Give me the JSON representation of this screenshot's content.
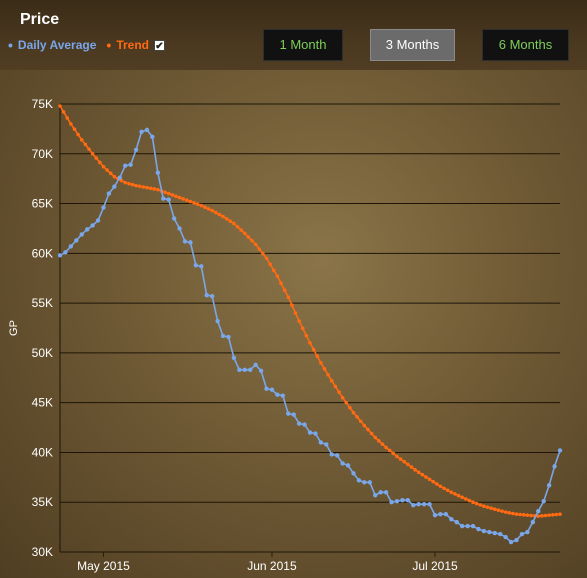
{
  "header": {
    "title": "Price",
    "legend": {
      "avg_label": "Daily Average",
      "trend_label": "Trend",
      "trend_checked": true
    },
    "buttons": [
      {
        "label": "1 Month"
      },
      {
        "label": "3 Months"
      },
      {
        "label": "6 Months"
      }
    ]
  },
  "colors": {
    "average": "#7aa6ea",
    "trend": "#ff6a12",
    "gridline": "#1e1408"
  },
  "chart_data": {
    "type": "line",
    "ylabel": "GP",
    "ylim": [
      30000,
      75000
    ],
    "y_ticks": [
      {
        "v": 30000,
        "label": "30K"
      },
      {
        "v": 35000,
        "label": "35K"
      },
      {
        "v": 40000,
        "label": "40K"
      },
      {
        "v": 45000,
        "label": "45K"
      },
      {
        "v": 50000,
        "label": "50K"
      },
      {
        "v": 55000,
        "label": "55K"
      },
      {
        "v": 60000,
        "label": "60K"
      },
      {
        "v": 65000,
        "label": "65K"
      },
      {
        "v": 70000,
        "label": "70K"
      },
      {
        "v": 75000,
        "label": "75K"
      }
    ],
    "x_start": "2015-04-23",
    "x_end": "2015-07-24",
    "x_ticks": [
      {
        "date": "2015-05-01",
        "label": "May 2015"
      },
      {
        "date": "2015-06-01",
        "label": "Jun 2015"
      },
      {
        "date": "2015-07-01",
        "label": "Jul 2015"
      }
    ],
    "series": [
      {
        "name": "Daily Average",
        "points": [
          [
            "2015-04-23",
            59800
          ],
          [
            "2015-04-24",
            60100
          ],
          [
            "2015-04-25",
            60700
          ],
          [
            "2015-04-26",
            61300
          ],
          [
            "2015-04-27",
            61900
          ],
          [
            "2015-04-28",
            62400
          ],
          [
            "2015-04-29",
            62800
          ],
          [
            "2015-04-30",
            63300
          ],
          [
            "2015-05-01",
            64600
          ],
          [
            "2015-05-02",
            66000
          ],
          [
            "2015-05-03",
            66700
          ],
          [
            "2015-05-04",
            67600
          ],
          [
            "2015-05-05",
            68800
          ],
          [
            "2015-05-06",
            68900
          ],
          [
            "2015-05-07",
            70400
          ],
          [
            "2015-05-08",
            72200
          ],
          [
            "2015-05-09",
            72400
          ],
          [
            "2015-05-10",
            71700
          ],
          [
            "2015-05-11",
            68100
          ],
          [
            "2015-05-12",
            65500
          ],
          [
            "2015-05-13",
            65400
          ],
          [
            "2015-05-14",
            63500
          ],
          [
            "2015-05-15",
            62500
          ],
          [
            "2015-05-16",
            61200
          ],
          [
            "2015-05-17",
            61100
          ],
          [
            "2015-05-18",
            58800
          ],
          [
            "2015-05-19",
            58700
          ],
          [
            "2015-05-20",
            55800
          ],
          [
            "2015-05-21",
            55700
          ],
          [
            "2015-05-22",
            53200
          ],
          [
            "2015-05-23",
            51700
          ],
          [
            "2015-05-24",
            51600
          ],
          [
            "2015-05-25",
            49500
          ],
          [
            "2015-05-26",
            48300
          ],
          [
            "2015-05-27",
            48300
          ],
          [
            "2015-05-28",
            48300
          ],
          [
            "2015-05-29",
            48800
          ],
          [
            "2015-05-30",
            48200
          ],
          [
            "2015-05-31",
            46400
          ],
          [
            "2015-06-01",
            46300
          ],
          [
            "2015-06-02",
            45800
          ],
          [
            "2015-06-03",
            45700
          ],
          [
            "2015-06-04",
            43900
          ],
          [
            "2015-06-05",
            43800
          ],
          [
            "2015-06-06",
            42900
          ],
          [
            "2015-06-07",
            42800
          ],
          [
            "2015-06-08",
            42000
          ],
          [
            "2015-06-09",
            41900
          ],
          [
            "2015-06-10",
            41000
          ],
          [
            "2015-06-11",
            40800
          ],
          [
            "2015-06-12",
            39800
          ],
          [
            "2015-06-13",
            39700
          ],
          [
            "2015-06-14",
            38900
          ],
          [
            "2015-06-15",
            38700
          ],
          [
            "2015-06-16",
            37900
          ],
          [
            "2015-06-17",
            37200
          ],
          [
            "2015-06-18",
            37000
          ],
          [
            "2015-06-19",
            37000
          ],
          [
            "2015-06-20",
            35700
          ],
          [
            "2015-06-21",
            36000
          ],
          [
            "2015-06-22",
            36000
          ],
          [
            "2015-06-23",
            35000
          ],
          [
            "2015-06-24",
            35100
          ],
          [
            "2015-06-25",
            35200
          ],
          [
            "2015-06-26",
            35200
          ],
          [
            "2015-06-27",
            34700
          ],
          [
            "2015-06-28",
            34800
          ],
          [
            "2015-06-29",
            34800
          ],
          [
            "2015-06-30",
            34800
          ],
          [
            "2015-07-01",
            33700
          ],
          [
            "2015-07-02",
            33800
          ],
          [
            "2015-07-03",
            33800
          ],
          [
            "2015-07-04",
            33300
          ],
          [
            "2015-07-05",
            33000
          ],
          [
            "2015-07-06",
            32600
          ],
          [
            "2015-07-07",
            32600
          ],
          [
            "2015-07-08",
            32600
          ],
          [
            "2015-07-09",
            32300
          ],
          [
            "2015-07-10",
            32100
          ],
          [
            "2015-07-11",
            32000
          ],
          [
            "2015-07-12",
            31900
          ],
          [
            "2015-07-13",
            31800
          ],
          [
            "2015-07-14",
            31500
          ],
          [
            "2015-07-15",
            31000
          ],
          [
            "2015-07-16",
            31200
          ],
          [
            "2015-07-17",
            31800
          ],
          [
            "2015-07-18",
            32000
          ],
          [
            "2015-07-19",
            33000
          ],
          [
            "2015-07-20",
            34100
          ],
          [
            "2015-07-21",
            35100
          ],
          [
            "2015-07-22",
            36700
          ],
          [
            "2015-07-23",
            38600
          ],
          [
            "2015-07-24",
            40200
          ]
        ]
      },
      {
        "name": "Trend",
        "points": [
          [
            "2015-04-23",
            74800
          ],
          [
            "2015-04-25",
            73000
          ],
          [
            "2015-04-27",
            71400
          ],
          [
            "2015-04-29",
            70000
          ],
          [
            "2015-05-01",
            68700
          ],
          [
            "2015-05-03",
            67700
          ],
          [
            "2015-05-05",
            67100
          ],
          [
            "2015-05-07",
            66800
          ],
          [
            "2015-05-09",
            66600
          ],
          [
            "2015-05-11",
            66400
          ],
          [
            "2015-05-13",
            66000
          ],
          [
            "2015-05-15",
            65600
          ],
          [
            "2015-05-17",
            65200
          ],
          [
            "2015-05-19",
            64800
          ],
          [
            "2015-05-21",
            64300
          ],
          [
            "2015-05-23",
            63700
          ],
          [
            "2015-05-25",
            63000
          ],
          [
            "2015-05-27",
            62000
          ],
          [
            "2015-05-29",
            60900
          ],
          [
            "2015-05-31",
            59500
          ],
          [
            "2015-06-02",
            57700
          ],
          [
            "2015-06-04",
            55600
          ],
          [
            "2015-06-06",
            53200
          ],
          [
            "2015-06-08",
            51000
          ],
          [
            "2015-06-10",
            49000
          ],
          [
            "2015-06-12",
            47200
          ],
          [
            "2015-06-14",
            45500
          ],
          [
            "2015-06-16",
            44000
          ],
          [
            "2015-06-18",
            42700
          ],
          [
            "2015-06-20",
            41500
          ],
          [
            "2015-06-22",
            40500
          ],
          [
            "2015-06-24",
            39600
          ],
          [
            "2015-06-26",
            38800
          ],
          [
            "2015-06-28",
            38000
          ],
          [
            "2015-06-30",
            37300
          ],
          [
            "2015-07-02",
            36600
          ],
          [
            "2015-07-04",
            36000
          ],
          [
            "2015-07-06",
            35500
          ],
          [
            "2015-07-08",
            35000
          ],
          [
            "2015-07-10",
            34600
          ],
          [
            "2015-07-12",
            34300
          ],
          [
            "2015-07-14",
            34000
          ],
          [
            "2015-07-16",
            33800
          ],
          [
            "2015-07-18",
            33700
          ],
          [
            "2015-07-20",
            33600
          ],
          [
            "2015-07-22",
            33700
          ],
          [
            "2015-07-24",
            33800
          ]
        ]
      }
    ]
  }
}
